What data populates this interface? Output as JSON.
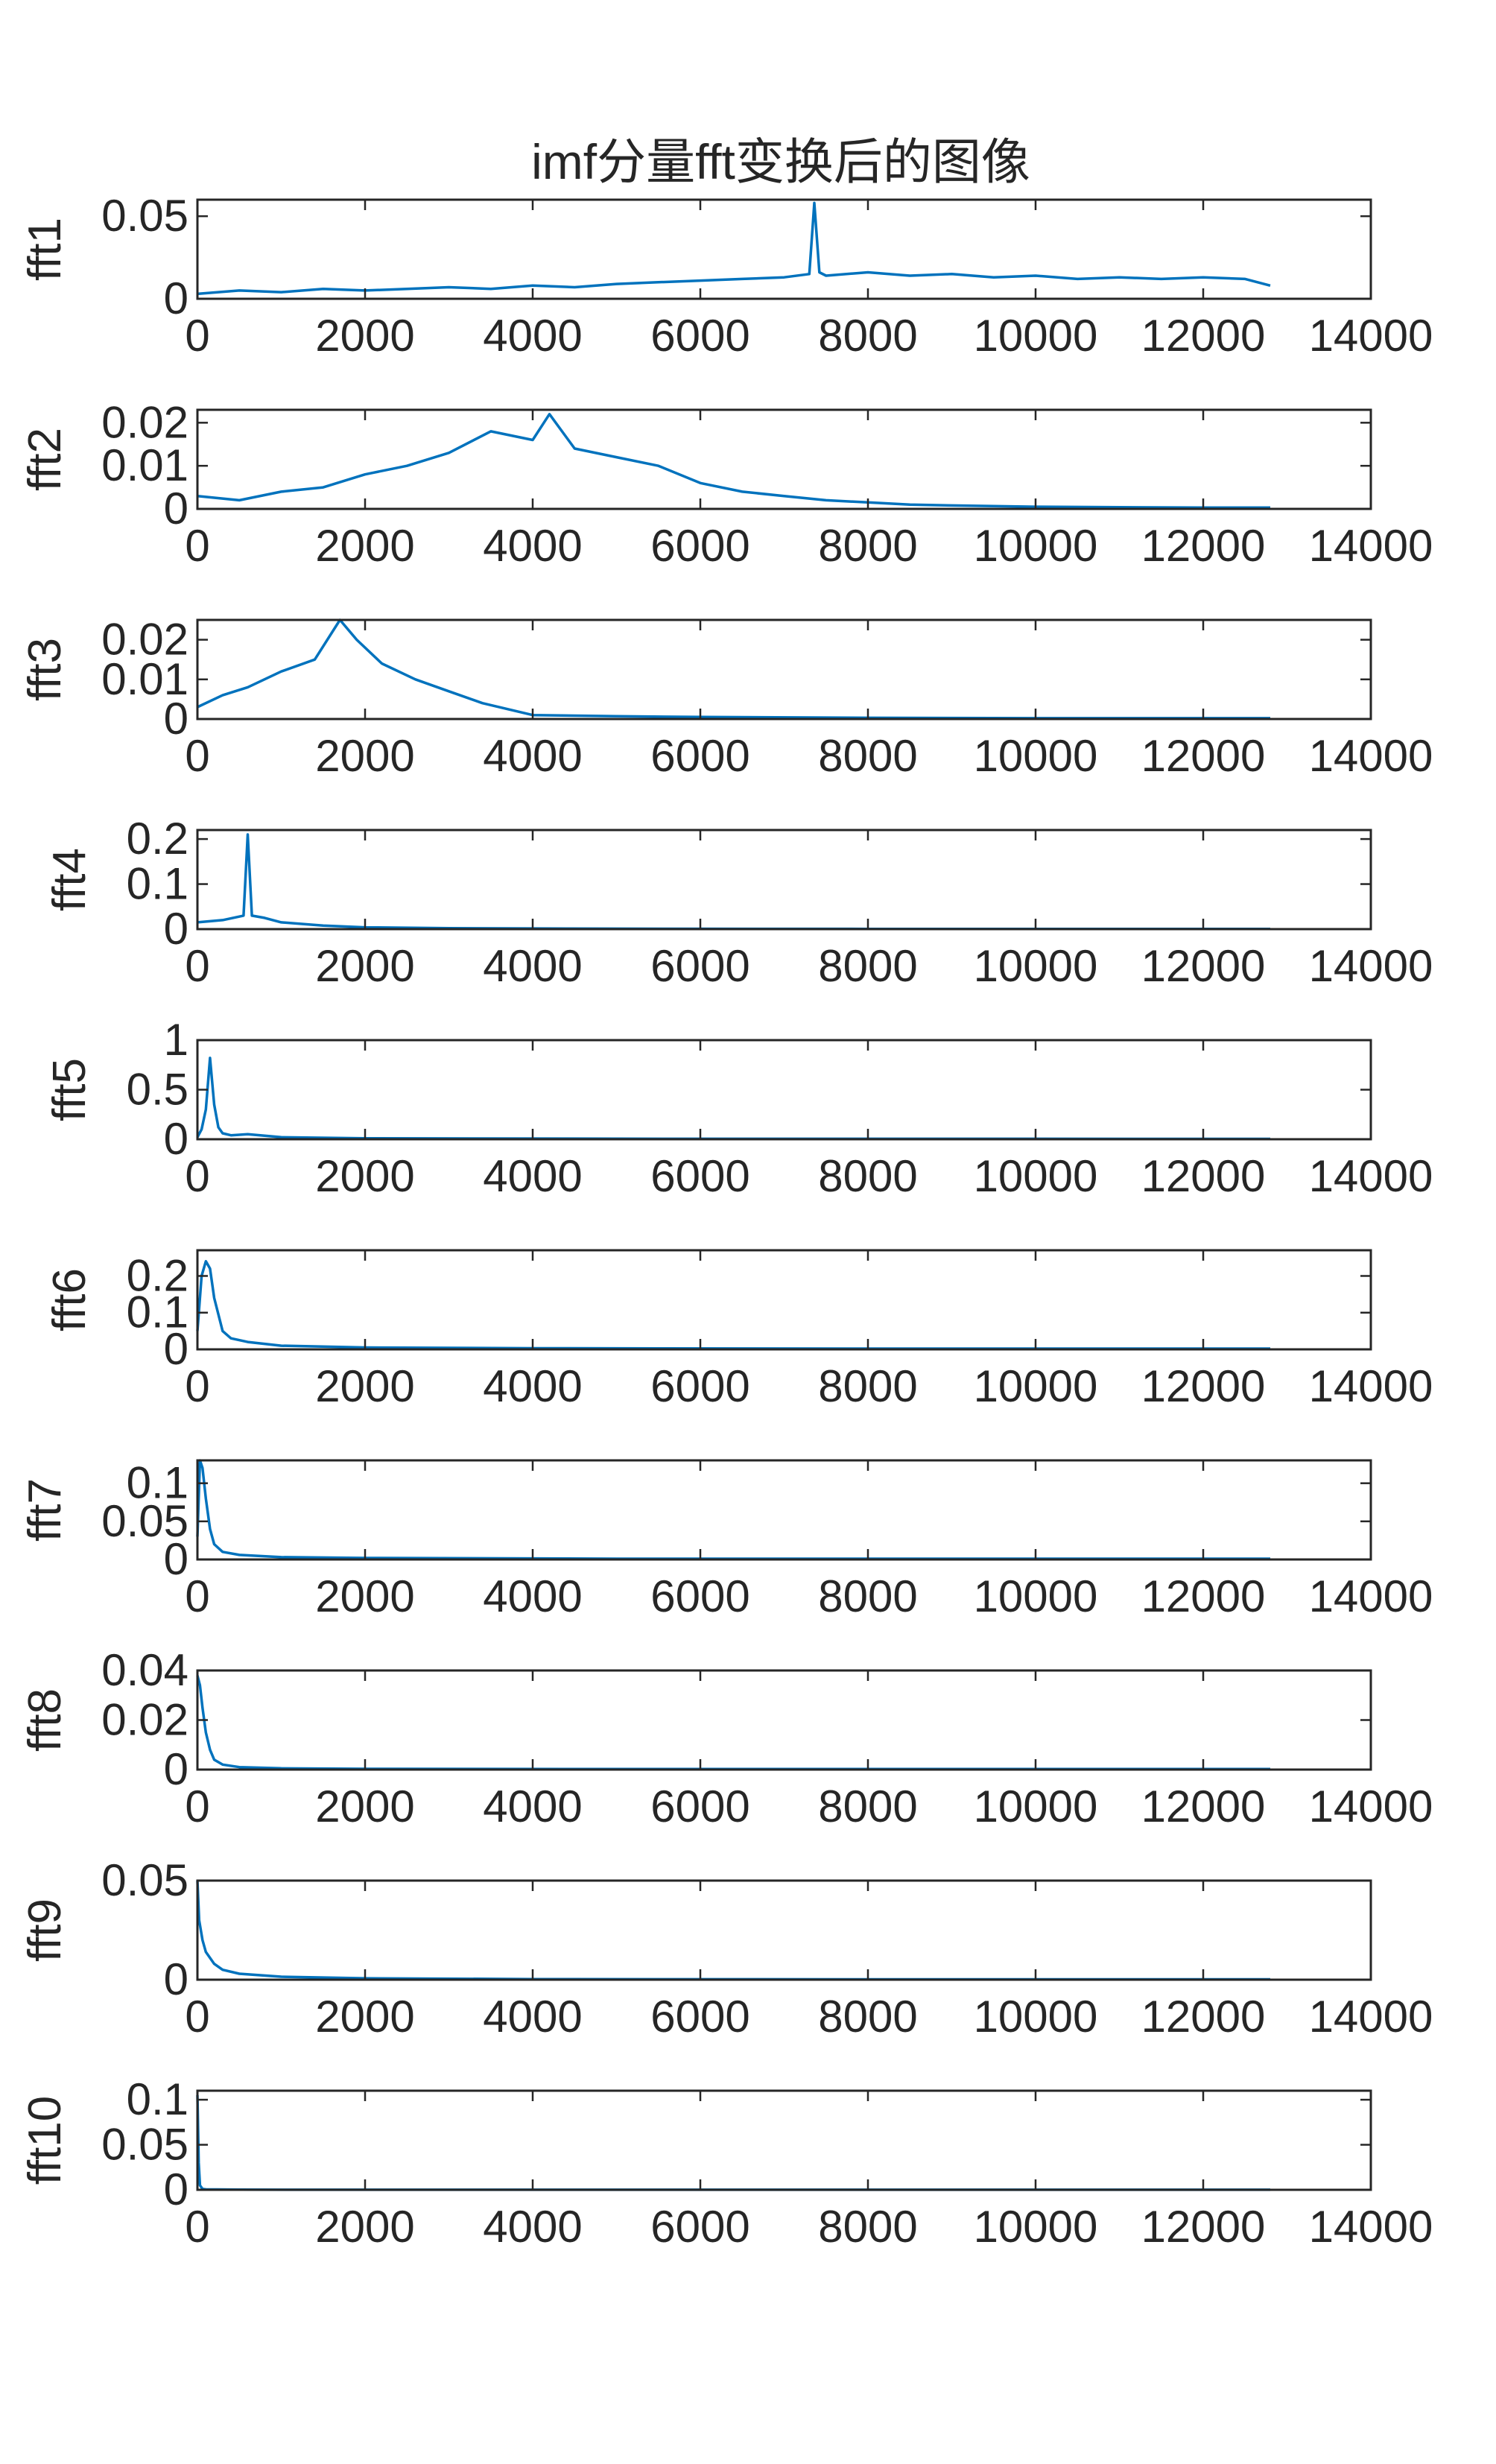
{
  "chart_data": {
    "type": "line",
    "title": "imf分量fft变换后的图像",
    "color": "#0072BD",
    "xlim": [
      0,
      14000
    ],
    "xticks": [
      0,
      2000,
      4000,
      6000,
      8000,
      10000,
      12000,
      14000
    ],
    "subplots": [
      {
        "ylabel": "fft1",
        "ylim": [
          0,
          0.06
        ],
        "yticks": [
          0,
          0.05
        ],
        "yticklabels": [
          "0",
          "0.05"
        ],
        "x": [
          0,
          500,
          1000,
          1500,
          2000,
          2500,
          3000,
          3500,
          4000,
          4500,
          5000,
          5500,
          6000,
          6500,
          7000,
          7300,
          7360,
          7420,
          7500,
          8000,
          8500,
          9000,
          9500,
          10000,
          10500,
          11000,
          11500,
          12000,
          12500,
          12800
        ],
        "y": [
          0.003,
          0.005,
          0.004,
          0.006,
          0.005,
          0.006,
          0.007,
          0.006,
          0.008,
          0.007,
          0.009,
          0.01,
          0.011,
          0.012,
          0.013,
          0.015,
          0.058,
          0.016,
          0.014,
          0.016,
          0.014,
          0.015,
          0.013,
          0.014,
          0.012,
          0.013,
          0.012,
          0.013,
          0.012,
          0.008
        ]
      },
      {
        "ylabel": "fft2",
        "ylim": [
          0,
          0.023
        ],
        "yticks": [
          0,
          0.01,
          0.02
        ],
        "yticklabels": [
          "0",
          "0.01",
          "0.02"
        ],
        "x": [
          0,
          500,
          1000,
          1500,
          2000,
          2500,
          3000,
          3500,
          4000,
          4200,
          4500,
          5000,
          5500,
          6000,
          6500,
          7000,
          7500,
          8000,
          8500,
          9000,
          10000,
          11000,
          12000,
          12800
        ],
        "y": [
          0.003,
          0.002,
          0.004,
          0.005,
          0.008,
          0.01,
          0.013,
          0.018,
          0.016,
          0.022,
          0.014,
          0.012,
          0.01,
          0.006,
          0.004,
          0.003,
          0.002,
          0.0015,
          0.001,
          0.0008,
          0.0005,
          0.0004,
          0.0003,
          0.0003
        ]
      },
      {
        "ylabel": "fft3",
        "ylim": [
          0,
          0.025
        ],
        "yticks": [
          0,
          0.01,
          0.02
        ],
        "yticklabels": [
          "0",
          "0.01",
          "0.02"
        ],
        "x": [
          0,
          300,
          600,
          1000,
          1400,
          1700,
          1900,
          2200,
          2600,
          3000,
          3400,
          4000,
          5000,
          6000,
          8000,
          10000,
          12800
        ],
        "y": [
          0.003,
          0.006,
          0.008,
          0.012,
          0.015,
          0.025,
          0.02,
          0.014,
          0.01,
          0.007,
          0.004,
          0.001,
          0.0007,
          0.0005,
          0.0003,
          0.0002,
          0.0002
        ]
      },
      {
        "ylabel": "fft4",
        "ylim": [
          0,
          0.22
        ],
        "yticks": [
          0,
          0.1,
          0.2
        ],
        "yticklabels": [
          "0",
          "0.1",
          "0.2"
        ],
        "x": [
          0,
          300,
          550,
          600,
          650,
          800,
          1000,
          1500,
          2000,
          3000,
          5000,
          8000,
          12800
        ],
        "y": [
          0.015,
          0.02,
          0.03,
          0.21,
          0.03,
          0.025,
          0.015,
          0.008,
          0.004,
          0.002,
          0.001,
          0.0005,
          0.0004
        ]
      },
      {
        "ylabel": "fft5",
        "ylim": [
          0,
          1
        ],
        "yticks": [
          0,
          0.5,
          1
        ],
        "yticklabels": [
          "0",
          "0.5",
          "1"
        ],
        "x": [
          0,
          50,
          100,
          150,
          200,
          250,
          300,
          400,
          600,
          1000,
          2000,
          5000,
          12800
        ],
        "y": [
          0.02,
          0.1,
          0.3,
          0.82,
          0.35,
          0.12,
          0.06,
          0.04,
          0.05,
          0.02,
          0.01,
          0.005,
          0.004
        ]
      },
      {
        "ylabel": "fft6",
        "ylim": [
          0,
          0.27
        ],
        "yticks": [
          0,
          0.1,
          0.2
        ],
        "yticklabels": [
          "0",
          "0.1",
          "0.2"
        ],
        "x": [
          0,
          50,
          100,
          150,
          200,
          300,
          400,
          600,
          1000,
          2000,
          4000,
          8000,
          12800
        ],
        "y": [
          0.05,
          0.2,
          0.24,
          0.22,
          0.14,
          0.05,
          0.03,
          0.02,
          0.01,
          0.005,
          0.003,
          0.002,
          0.002
        ]
      },
      {
        "ylabel": "fft7",
        "ylim": [
          0,
          0.13
        ],
        "yticks": [
          0,
          0.05,
          0.1
        ],
        "yticklabels": [
          "0",
          "0.05",
          "0.1"
        ],
        "x": [
          0,
          30,
          60,
          100,
          150,
          200,
          300,
          500,
          1000,
          2000,
          5000,
          12800
        ],
        "y": [
          0.03,
          0.13,
          0.12,
          0.08,
          0.04,
          0.02,
          0.01,
          0.006,
          0.003,
          0.002,
          0.001,
          0.001
        ]
      },
      {
        "ylabel": "fft8",
        "ylim": [
          0,
          0.04
        ],
        "yticks": [
          0,
          0.02,
          0.04
        ],
        "yticklabels": [
          "0",
          "0.02",
          "0.04"
        ],
        "x": [
          0,
          30,
          60,
          100,
          150,
          200,
          300,
          500,
          1000,
          2000,
          5000,
          12800
        ],
        "y": [
          0.038,
          0.034,
          0.025,
          0.015,
          0.008,
          0.004,
          0.002,
          0.001,
          0.0005,
          0.0003,
          0.0002,
          0.0002
        ]
      },
      {
        "ylabel": "fft9",
        "ylim": [
          0,
          0.05
        ],
        "yticks": [
          0,
          0.05
        ],
        "yticklabels": [
          "0",
          "0.05"
        ],
        "x": [
          0,
          20,
          60,
          100,
          200,
          300,
          500,
          1000,
          2000,
          4000,
          8000,
          12800
        ],
        "y": [
          0.05,
          0.03,
          0.02,
          0.014,
          0.008,
          0.005,
          0.003,
          0.0015,
          0.0007,
          0.0003,
          0.0002,
          0.0002
        ]
      },
      {
        "ylabel": "fft10",
        "ylim": [
          0,
          0.11
        ],
        "yticks": [
          0,
          0.05,
          0.1
        ],
        "yticklabels": [
          "0",
          "0.05",
          "0.1"
        ],
        "x": [
          0,
          5,
          15,
          30,
          60,
          100,
          500,
          2000,
          12800
        ],
        "y": [
          0.105,
          0.08,
          0.03,
          0.005,
          0.001,
          0.0005,
          0.0002,
          0.0001,
          0.0001
        ]
      }
    ]
  }
}
